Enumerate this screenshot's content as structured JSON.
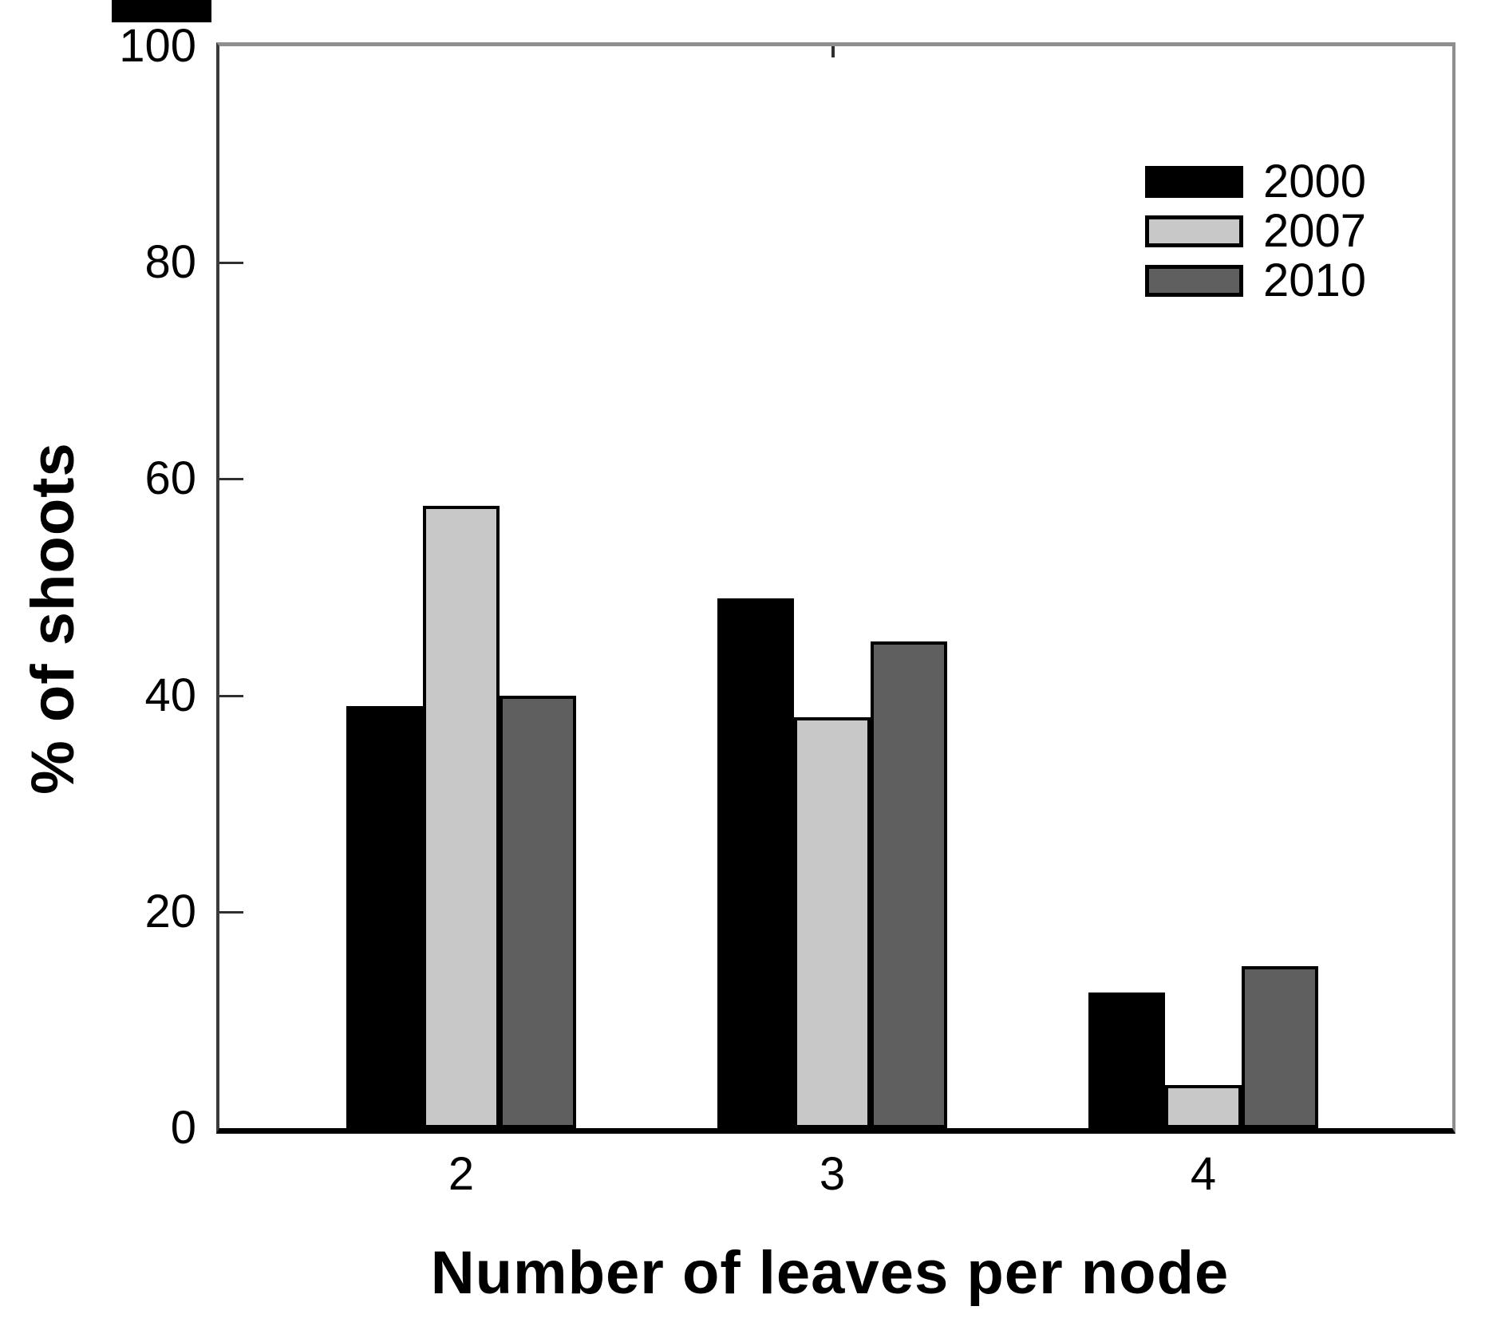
{
  "chart_data": {
    "type": "bar",
    "title": "",
    "xlabel": "Number of leaves per node",
    "ylabel": "% of shoots",
    "categories": [
      "2",
      "3",
      "4"
    ],
    "series": [
      {
        "name": "2000",
        "color": "#000000",
        "values": [
          39,
          49,
          12.5
        ]
      },
      {
        "name": "2007",
        "color": "#c8c8c8",
        "values": [
          57.5,
          38,
          4
        ]
      },
      {
        "name": "2010",
        "color": "#5f5f5f",
        "values": [
          40,
          45,
          15
        ]
      }
    ],
    "ylim": [
      0,
      100
    ],
    "yticks": [
      0,
      20,
      40,
      60,
      80,
      100
    ],
    "grid": false,
    "legend_position": "top-right",
    "bar_outline_color": "#000000"
  }
}
